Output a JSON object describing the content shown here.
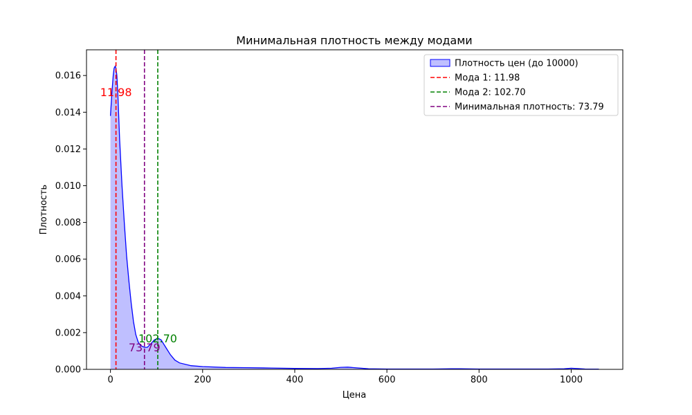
{
  "chart_data": {
    "type": "area",
    "title": "Минимальная плотность между модами",
    "xlabel": "Цена",
    "ylabel": "Плотность",
    "xlim": [
      -52,
      1112
    ],
    "ylim": [
      0,
      0.0174
    ],
    "x_ticks": [
      {
        "value": 0,
        "label": "0"
      },
      {
        "value": 200,
        "label": "200"
      },
      {
        "value": 400,
        "label": "400"
      },
      {
        "value": 600,
        "label": "600"
      },
      {
        "value": 800,
        "label": "800"
      },
      {
        "value": 1000,
        "label": "1000"
      }
    ],
    "y_ticks": [
      {
        "value": 0,
        "label": "0.000"
      },
      {
        "value": 0.002,
        "label": "0.002"
      },
      {
        "value": 0.004,
        "label": "0.004"
      },
      {
        "value": 0.006,
        "label": "0.006"
      },
      {
        "value": 0.008,
        "label": "0.008"
      },
      {
        "value": 0.01,
        "label": "0.010"
      },
      {
        "value": 0.012,
        "label": "0.012"
      },
      {
        "value": 0.014,
        "label": "0.014"
      },
      {
        "value": 0.016,
        "label": "0.016"
      }
    ],
    "grid": false,
    "legend_position": "top-right",
    "series": [
      {
        "name": "Плотность цен (до 10000)",
        "color": "#0000ff",
        "fill": "#bfbfff",
        "points": [
          [
            0,
            0.0138
          ],
          [
            3,
            0.015
          ],
          [
            6,
            0.016
          ],
          [
            8,
            0.0164
          ],
          [
            10,
            0.0165
          ],
          [
            12,
            0.0164
          ],
          [
            14,
            0.016
          ],
          [
            16,
            0.015
          ],
          [
            20,
            0.0125
          ],
          [
            25,
            0.01
          ],
          [
            30,
            0.008
          ],
          [
            35,
            0.0062
          ],
          [
            40,
            0.0048
          ],
          [
            45,
            0.0036
          ],
          [
            50,
            0.0026
          ],
          [
            55,
            0.0019
          ],
          [
            60,
            0.0015
          ],
          [
            65,
            0.0013
          ],
          [
            73.79,
            0.0012
          ],
          [
            80,
            0.0012
          ],
          [
            88,
            0.0014
          ],
          [
            95,
            0.0016
          ],
          [
            102.7,
            0.0017
          ],
          [
            110,
            0.0016
          ],
          [
            120,
            0.0012
          ],
          [
            130,
            0.0008
          ],
          [
            140,
            0.0005
          ],
          [
            150,
            0.00035
          ],
          [
            175,
            0.0002
          ],
          [
            200,
            0.00015
          ],
          [
            250,
            0.0001
          ],
          [
            300,
            9e-05
          ],
          [
            350,
            7e-05
          ],
          [
            400,
            5e-05
          ],
          [
            450,
            4e-05
          ],
          [
            480,
            6e-05
          ],
          [
            500,
            0.00011
          ],
          [
            515,
            0.00012
          ],
          [
            530,
            9e-05
          ],
          [
            560,
            3e-05
          ],
          [
            600,
            2e-05
          ],
          [
            650,
            2e-05
          ],
          [
            700,
            2e-05
          ],
          [
            740,
            3e-05
          ],
          [
            760,
            3e-05
          ],
          [
            800,
            2e-05
          ],
          [
            850,
            2e-05
          ],
          [
            900,
            2e-05
          ],
          [
            950,
            2e-05
          ],
          [
            985,
            3e-05
          ],
          [
            1000,
            6e-05
          ],
          [
            1015,
            4e-05
          ],
          [
            1030,
            2e-05
          ],
          [
            1060,
            1e-05
          ]
        ]
      }
    ],
    "vlines": [
      {
        "name": "Мода 1: 11.98",
        "x": 11.98,
        "color": "#ff0000",
        "label": "11.98",
        "label_y": 0.0151
      },
      {
        "name": "Мода 2: 102.70",
        "x": 102.7,
        "color": "#008000",
        "label": "102.70",
        "label_y": 0.0017
      },
      {
        "name": "Минимальная плотность: 73.79",
        "x": 73.79,
        "color": "#800080",
        "label": "73.79",
        "label_y": 0.0012
      }
    ]
  }
}
